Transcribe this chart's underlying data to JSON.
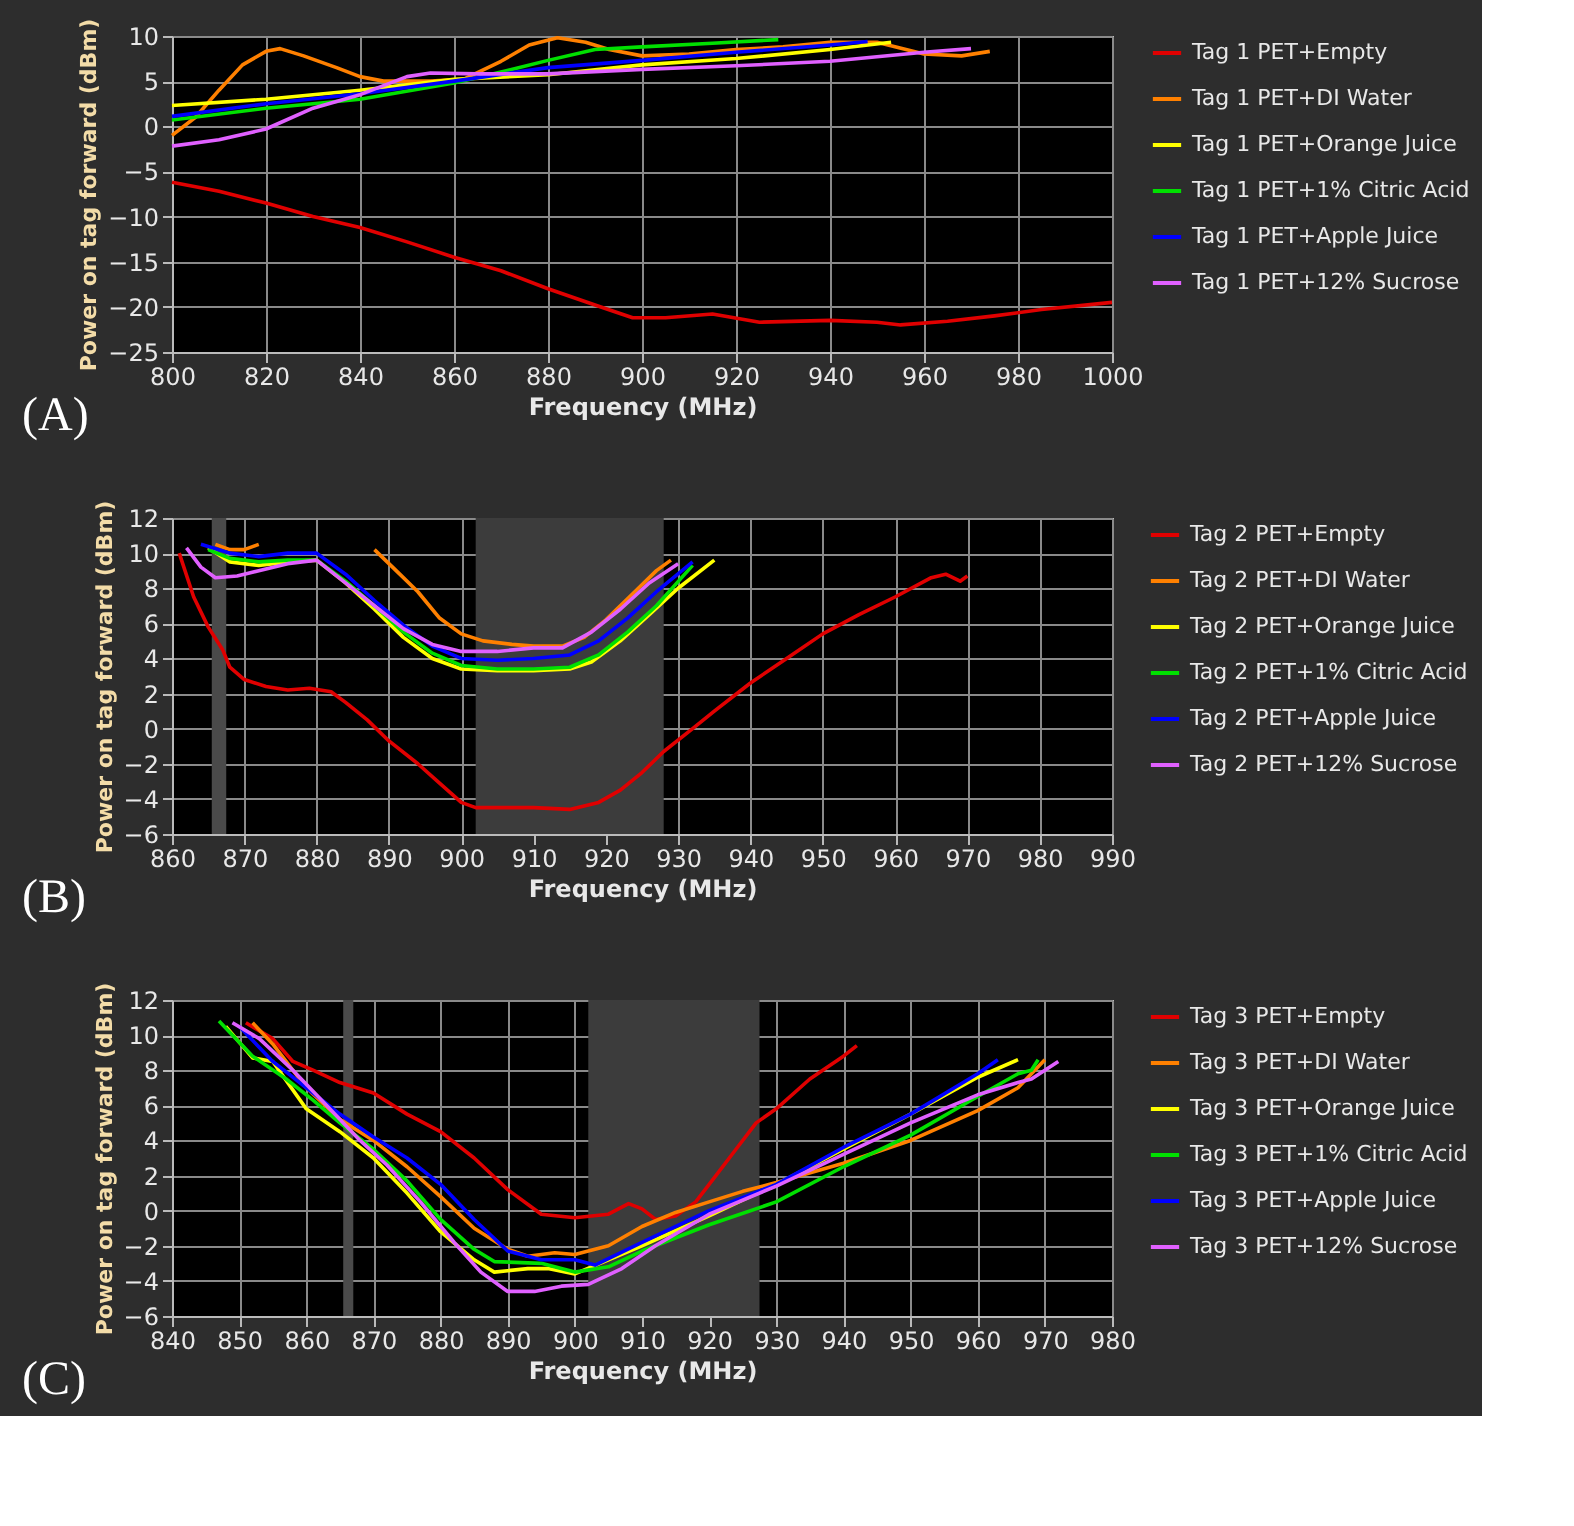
{
  "chart_data": [
    {
      "type": "line",
      "xlabel": "Frequency (MHz)",
      "ylabel": "Power on tag forward (dBm)",
      "annotations": [
        "(A)"
      ],
      "xlim": [
        800,
        1000
      ],
      "xticks": [
        800,
        820,
        840,
        860,
        880,
        900,
        920,
        940,
        960,
        980,
        1000
      ],
      "ylim": [
        -25,
        10
      ],
      "yticks": [
        -25,
        -20,
        -15,
        -10,
        -5,
        0,
        5,
        10
      ],
      "grid": true,
      "legend": "top right",
      "marker": "none",
      "line_style": "solid",
      "series": [
        {
          "name": "Tag 1 PET+Empty",
          "color": "#e00000",
          "x": [
            800,
            810,
            820,
            830,
            840,
            850,
            860,
            870,
            880,
            890,
            898,
            905,
            915,
            925,
            940,
            950,
            955,
            965,
            975,
            985,
            1000
          ],
          "values": [
            -6.2,
            -7.2,
            -8.5,
            -10,
            -11.2,
            -12.8,
            -14.5,
            -16,
            -18,
            -19.8,
            -21.2,
            -21.2,
            -20.8,
            -21.7,
            -21.5,
            -21.7,
            -22,
            -21.6,
            -21,
            -20.3,
            -19.5
          ]
        },
        {
          "name": "Tag 1 PET+DI Water",
          "color": "#ff8000",
          "x": [
            800,
            805,
            810,
            815,
            820,
            823,
            828,
            835,
            840,
            845,
            855,
            862,
            870,
            876,
            882,
            888,
            893,
            900,
            910,
            920,
            930,
            940,
            950,
            960,
            968,
            974
          ],
          "values": [
            -1,
            1,
            4,
            6.8,
            8.3,
            8.6,
            7.8,
            6.5,
            5.5,
            5,
            5,
            5.2,
            7.2,
            9,
            9.8,
            9.3,
            8.5,
            7.8,
            8,
            8.5,
            8.8,
            9.3,
            9.3,
            8,
            7.8,
            8.3
          ]
        },
        {
          "name": "Tag 1 PET+Orange Juice",
          "color": "#ffff00",
          "x": [
            800,
            820,
            840,
            860,
            880,
            900,
            920,
            940,
            953
          ],
          "values": [
            2.3,
            3,
            4,
            5.2,
            5.7,
            6.8,
            7.5,
            8.5,
            9.3
          ]
        },
        {
          "name": "Tag 1 PET+1% Citric Acid",
          "color": "#00e000",
          "x": [
            800,
            820,
            840,
            860,
            870,
            880,
            890,
            900,
            915,
            929
          ],
          "values": [
            0.7,
            2,
            3,
            4.8,
            6,
            7.3,
            8.5,
            8.8,
            9.2,
            9.6
          ]
        },
        {
          "name": "Tag 1 PET+Apple Juice",
          "color": "#0000ff",
          "x": [
            800,
            820,
            840,
            860,
            880,
            900,
            920,
            940,
            948
          ],
          "values": [
            1.1,
            2.5,
            3.6,
            5,
            6.5,
            7.3,
            8.2,
            9,
            9.4
          ]
        },
        {
          "name": "Tag 1 PET+12% Sucrose",
          "color": "#e060ff",
          "x": [
            800,
            810,
            820,
            830,
            840,
            850,
            855,
            865,
            880,
            900,
            920,
            940,
            960,
            970
          ],
          "values": [
            -2.2,
            -1.5,
            -0.3,
            2,
            3.5,
            5.5,
            5.9,
            5.8,
            5.8,
            6.3,
            6.7,
            7.2,
            8.2,
            8.6
          ]
        }
      ]
    },
    {
      "type": "line",
      "xlabel": "Frequency (MHz)",
      "ylabel": "Power on tag forward (dBm)",
      "annotations": [
        "(B)"
      ],
      "xlim": [
        860,
        990
      ],
      "xticks": [
        860,
        870,
        880,
        890,
        900,
        910,
        920,
        930,
        940,
        950,
        960,
        970,
        980,
        990
      ],
      "ylim": [
        -6,
        12
      ],
      "yticks": [
        -6,
        -4,
        -2,
        0,
        2,
        4,
        6,
        8,
        10,
        12
      ],
      "grid": true,
      "legend": "top right",
      "marker": "none",
      "line_style": "solid",
      "bands": [
        {
          "axis": "x",
          "from": 865.5,
          "to": 867.5,
          "color": "#4a4a4a"
        },
        {
          "axis": "x",
          "from": 902,
          "to": 928,
          "color": "#3c3c3c"
        }
      ],
      "series": [
        {
          "name": "Tag 2 PET+Empty",
          "color": "#e00000",
          "x": [
            861,
            863,
            865,
            867,
            868,
            870,
            873,
            876,
            879,
            882,
            884,
            887,
            890,
            894,
            897,
            900,
            902,
            906,
            910,
            915,
            919,
            922,
            925,
            928,
            932,
            935,
            940,
            945,
            950,
            955,
            960,
            965,
            967,
            969,
            970
          ],
          "values": [
            10,
            7.5,
            5.8,
            4.5,
            3.5,
            2.8,
            2.4,
            2.2,
            2.3,
            2.1,
            1.5,
            0.5,
            -0.7,
            -2,
            -3.1,
            -4.2,
            -4.5,
            -4.5,
            -4.5,
            -4.6,
            -4.2,
            -3.5,
            -2.5,
            -1.3,
            0,
            1,
            2.6,
            4,
            5.4,
            6.5,
            7.5,
            8.6,
            8.8,
            8.4,
            8.7
          ]
        },
        {
          "name": "Tag 2 PET+DI Water",
          "color": "#ff8000",
          "x": [
            866,
            868,
            870,
            872,
            880,
            888,
            891,
            894,
            897,
            900,
            903,
            907,
            910,
            914,
            917,
            920,
            924,
            927,
            929
          ],
          "values": [
            10.5,
            10.2,
            10.2,
            10.5,
            null,
            10.2,
            9,
            7.8,
            6.3,
            5.4,
            5,
            4.8,
            4.7,
            4.7,
            5.2,
            6.2,
            7.8,
            9,
            9.6
          ]
        },
        {
          "name": "Tag 2 PET+Orange Juice",
          "color": "#ffff00",
          "x": [
            865,
            868,
            872,
            876,
            880,
            884,
            888,
            892,
            896,
            900,
            905,
            910,
            915,
            918,
            922,
            926,
            930,
            935
          ],
          "values": [
            10.3,
            9.5,
            9.3,
            9.5,
            9.6,
            8.3,
            6.8,
            5.2,
            4,
            3.4,
            3.3,
            3.3,
            3.4,
            3.8,
            5,
            6.5,
            8,
            9.6
          ]
        },
        {
          "name": "Tag 2 PET+1% Citric Acid",
          "color": "#00e000",
          "x": [
            865,
            868,
            872,
            876,
            880,
            884,
            888,
            892,
            896,
            900,
            905,
            910,
            915,
            919,
            923,
            927,
            932
          ],
          "values": [
            10.2,
            9.7,
            9.5,
            9.6,
            9.6,
            8.4,
            7,
            5.5,
            4.3,
            3.6,
            3.4,
            3.4,
            3.5,
            4.2,
            5.5,
            7,
            9.3
          ]
        },
        {
          "name": "Tag 2 PET+Apple Juice",
          "color": "#0000ff",
          "x": [
            864,
            868,
            872,
            876,
            880,
            884,
            888,
            892,
            896,
            900,
            905,
            910,
            915,
            919,
            923,
            927,
            932
          ],
          "values": [
            10.5,
            10,
            9.8,
            10,
            10,
            8.8,
            7.3,
            5.9,
            4.7,
            4,
            3.9,
            4,
            4.2,
            5,
            6.3,
            7.8,
            9.5
          ]
        },
        {
          "name": "Tag 2 PET+12% Sucrose",
          "color": "#e060ff",
          "x": [
            862,
            864,
            866,
            869,
            872,
            876,
            880,
            884,
            888,
            892,
            896,
            900,
            905,
            910,
            914,
            918,
            922,
            926,
            930
          ],
          "values": [
            10.3,
            9.2,
            8.6,
            8.7,
            9,
            9.4,
            9.6,
            8.3,
            7,
            5.7,
            4.8,
            4.4,
            4.4,
            4.6,
            4.6,
            5.5,
            6.8,
            8.3,
            9.4
          ]
        }
      ]
    },
    {
      "type": "line",
      "xlabel": "Frequency (MHz)",
      "ylabel": "Power on tag forward (dBm)",
      "annotations": [
        "(C)"
      ],
      "xlim": [
        840,
        980
      ],
      "xticks": [
        840,
        850,
        860,
        870,
        880,
        890,
        900,
        910,
        920,
        930,
        940,
        950,
        960,
        970,
        980
      ],
      "ylim": [
        -6,
        12
      ],
      "yticks": [
        -6,
        -4,
        -2,
        0,
        2,
        4,
        6,
        8,
        10,
        12
      ],
      "grid": true,
      "legend": "top right",
      "marker": "none",
      "line_style": "solid",
      "bands": [
        {
          "axis": "x",
          "from": 865.5,
          "to": 867,
          "color": "#4a4a4a"
        },
        {
          "axis": "x",
          "from": 902,
          "to": 927.5,
          "color": "#3c3c3c"
        }
      ],
      "series": [
        {
          "name": "Tag 3 PET+Empty",
          "color": "#e00000",
          "x": [
            851,
            855,
            858,
            861,
            865,
            870,
            875,
            880,
            885,
            890,
            895,
            900,
            905,
            908,
            910,
            912,
            915,
            918,
            921,
            924,
            927,
            930,
            935,
            940,
            942
          ],
          "values": [
            10.7,
            9.8,
            8.5,
            8,
            7.3,
            6.7,
            5.5,
            4.5,
            3,
            1.2,
            -0.2,
            -0.4,
            -0.2,
            0.4,
            0.1,
            -0.5,
            -0.3,
            0.5,
            2,
            3.5,
            5,
            5.8,
            7.5,
            8.8,
            9.4
          ]
        },
        {
          "name": "Tag 3 PET+DI Water",
          "color": "#ff8000",
          "x": [
            852,
            855,
            860,
            865,
            870,
            875,
            880,
            885,
            890,
            893,
            897,
            900,
            905,
            910,
            915,
            920,
            925,
            930,
            940,
            950,
            960,
            966,
            970
          ],
          "values": [
            10.7,
            9.5,
            7,
            5.2,
            4,
            2.5,
            0.8,
            -1,
            -2.2,
            -2.6,
            -2.4,
            -2.5,
            -2,
            -0.9,
            -0.1,
            0.5,
            1.1,
            1.6,
            2.7,
            4,
            5.7,
            7,
            8.6
          ]
        },
        {
          "name": "Tag 3 PET+Orange Juice",
          "color": "#ffff00",
          "x": [
            848,
            852,
            855,
            860,
            865,
            870,
            875,
            880,
            885,
            888,
            893,
            896,
            900,
            905,
            910,
            920,
            930,
            940,
            950,
            960,
            966
          ],
          "values": [
            10.5,
            8.7,
            8.5,
            5.8,
            4.5,
            3,
            1,
            -1.2,
            -2.8,
            -3.5,
            -3.3,
            -3.3,
            -3.6,
            -2.8,
            -2,
            -0.3,
            1.5,
            3.5,
            5.5,
            7.6,
            8.6
          ]
        },
        {
          "name": "Tag 3 PET+1% Citric Acid",
          "color": "#00e000",
          "x": [
            847,
            852,
            857,
            861,
            865,
            870,
            875,
            880,
            885,
            888,
            895,
            900,
            905,
            910,
            920,
            930,
            940,
            950,
            960,
            966,
            968,
            969
          ],
          "values": [
            10.8,
            8.8,
            7.5,
            6.3,
            5,
            3.5,
            1.7,
            -0.5,
            -2.2,
            -2.9,
            -3,
            -3.5,
            -3.2,
            -2.3,
            -0.8,
            0.5,
            2.5,
            4.3,
            6.5,
            7.8,
            8,
            8.6
          ]
        },
        {
          "name": "Tag 3 PET+Apple Juice",
          "color": "#0000ff",
          "x": [
            850,
            855,
            860,
            865,
            870,
            875,
            880,
            885,
            890,
            895,
            900,
            903,
            910,
            920,
            930,
            940,
            950,
            960,
            963
          ],
          "values": [
            10.5,
            8.5,
            7,
            5.5,
            4.2,
            3,
            1.5,
            -0.5,
            -2.3,
            -2.8,
            -2.8,
            -3.1,
            -1.8,
            0,
            1.5,
            3.6,
            5.5,
            7.8,
            8.6
          ]
        },
        {
          "name": "Tag 3 PET+12% Sucrose",
          "color": "#e060ff",
          "x": [
            849,
            853,
            858,
            863,
            868,
            872,
            877,
            882,
            886,
            890,
            894,
            898,
            902,
            907,
            912,
            920,
            930,
            940,
            950,
            960,
            966,
            968,
            970,
            972
          ],
          "values": [
            10.7,
            9.8,
            8,
            6,
            4,
            2.6,
            0.5,
            -1.8,
            -3.5,
            -4.6,
            -4.6,
            -4.3,
            -4.2,
            -3.3,
            -2,
            -0.2,
            1.4,
            3.2,
            5,
            6.6,
            7.3,
            7.5,
            8,
            8.5
          ]
        }
      ]
    }
  ]
}
